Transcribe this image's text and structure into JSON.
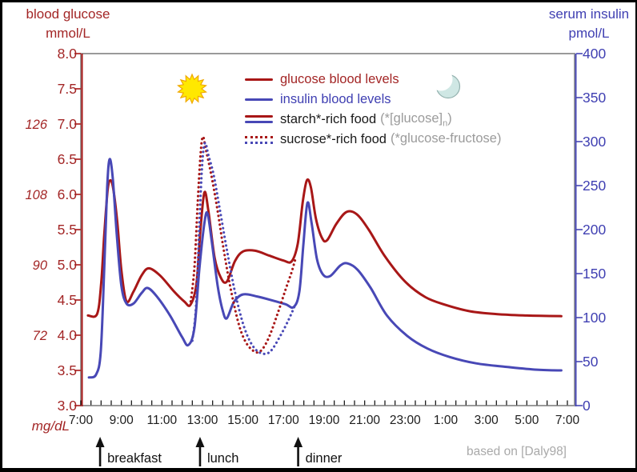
{
  "window": {
    "background": "#ffffff",
    "frame_color": "#000000"
  },
  "titles": {
    "left_axis": [
      "blood glucose",
      "mmol/L"
    ],
    "right_axis": [
      "serum insulin",
      "pmol/L"
    ],
    "credit": "based on [Daly98]"
  },
  "colors": {
    "glucose_line": "#a81717",
    "insulin_line": "#4848b6",
    "axis_red_text": "#a32626",
    "axis_blue_text": "#3f3fb2",
    "frame_gray": "#9a9a9a",
    "tick_black": "#1a1a1a",
    "time_label_black": "#1c1c1c",
    "meal_label_black": "#111111",
    "note_gray": "#9b9b9b",
    "credit_gray": "#a9a9a9",
    "sun_fill": "#ffe800",
    "sun_stroke": "#f0a800",
    "moon_fill": "#cfe7e4",
    "moon_stroke": "#93b1ae"
  },
  "icons": {
    "sun": "sun-icon",
    "moon": "moon-icon"
  },
  "legend": {
    "items": [
      {
        "label": "glucose blood levels",
        "swatch": "solid-red"
      },
      {
        "label": "insulin blood levels",
        "swatch": "solid-blue"
      },
      {
        "label": "starch*-rich food",
        "note_pre": "(*[glucose]",
        "note_sub": "n",
        "note_post": ")",
        "swatch": "double-solid"
      },
      {
        "label": "sucrose*-rich food",
        "note_pre": "(*glucose-fructose)",
        "note_sub": "",
        "note_post": "",
        "swatch": "double-dotted"
      }
    ]
  },
  "meals": [
    {
      "label": "breakfast",
      "hour": 7.95
    },
    {
      "label": "lunch",
      "hour": 12.88
    },
    {
      "label": "dinner",
      "hour": 17.72
    }
  ],
  "chart_data": {
    "type": "line",
    "title": "",
    "x_axis": {
      "unit": "time of day",
      "range_hours": [
        7,
        31.4
      ],
      "minor_tick_step_hours": 0.5,
      "labels": [
        {
          "text": "7:00",
          "hour": 7
        },
        {
          "text": "9:00",
          "hour": 9
        },
        {
          "text": "11:00",
          "hour": 11
        },
        {
          "text": "13:00",
          "hour": 13
        },
        {
          "text": "15:00",
          "hour": 15
        },
        {
          "text": "17:00",
          "hour": 17
        },
        {
          "text": "19:00",
          "hour": 19
        },
        {
          "text": "21:00",
          "hour": 21
        },
        {
          "text": "23:00",
          "hour": 23
        },
        {
          "text": "1:00",
          "hour": 25
        },
        {
          "text": "3:00",
          "hour": 27
        },
        {
          "text": "5:00",
          "hour": 29
        },
        {
          "text": "7:00",
          "hour": 31
        }
      ]
    },
    "y_left": {
      "label": "blood glucose mmol/L",
      "range": [
        3.0,
        8.0
      ],
      "ticks": [
        {
          "label": "8.0",
          "value": 8.0
        },
        {
          "label": "7.5",
          "value": 7.5
        },
        {
          "label": "7.0",
          "value": 7.0
        },
        {
          "label": "6.5",
          "value": 6.5
        },
        {
          "label": "6.0",
          "value": 6.0
        },
        {
          "label": "5.5",
          "value": 5.5
        },
        {
          "label": "5.0",
          "value": 5.0
        },
        {
          "label": "4.5",
          "value": 4.5
        },
        {
          "label": "4.0",
          "value": 4.0
        },
        {
          "label": "3.5",
          "value": 3.5
        },
        {
          "label": "3.0",
          "value": 3.0
        }
      ],
      "secondary_mgdl_labels": [
        {
          "text": "126",
          "value": 7.0
        },
        {
          "text": "108",
          "value": 6.0
        },
        {
          "text": "90",
          "value": 5.0
        },
        {
          "text": "72",
          "value": 4.0
        }
      ],
      "secondary_unit": "mg/dL"
    },
    "y_right": {
      "label": "serum insulin pmol/L",
      "range": [
        0,
        400
      ],
      "ticks": [
        {
          "label": "400",
          "value": 400
        },
        {
          "label": "350",
          "value": 350
        },
        {
          "label": "300",
          "value": 300
        },
        {
          "label": "250",
          "value": 250
        },
        {
          "label": "200",
          "value": 200
        },
        {
          "label": "150",
          "value": 150
        },
        {
          "label": "100",
          "value": 100
        },
        {
          "label": "50",
          "value": 50
        },
        {
          "label": "0",
          "value": 0
        }
      ]
    },
    "legend_entries": [
      "glucose blood levels",
      "insulin blood levels",
      "starch*-rich food (*[glucose]n)",
      "sucrose*-rich food (*glucose-fructose)"
    ],
    "annotations": [
      "breakfast",
      "lunch",
      "dinner",
      "based on [Daly98]"
    ],
    "series": [
      {
        "name": "glucose blood levels — starch-rich food",
        "style": "solid",
        "color_key": "glucose_line",
        "points": [
          [
            7.35,
            4.28
          ],
          [
            7.8,
            4.3
          ],
          [
            8.0,
            4.72
          ],
          [
            8.15,
            5.4
          ],
          [
            8.32,
            6.05
          ],
          [
            8.45,
            6.2
          ],
          [
            8.6,
            6.08
          ],
          [
            8.8,
            5.6
          ],
          [
            9.0,
            4.92
          ],
          [
            9.25,
            4.48
          ],
          [
            9.6,
            4.62
          ],
          [
            10.0,
            4.85
          ],
          [
            10.35,
            4.95
          ],
          [
            10.9,
            4.85
          ],
          [
            11.6,
            4.62
          ],
          [
            12.1,
            4.48
          ],
          [
            12.4,
            4.43
          ],
          [
            12.7,
            4.72
          ],
          [
            12.9,
            5.5
          ],
          [
            13.1,
            6.03
          ],
          [
            13.3,
            5.75
          ],
          [
            13.6,
            5.1
          ],
          [
            13.9,
            4.82
          ],
          [
            14.2,
            4.76
          ],
          [
            14.6,
            5.05
          ],
          [
            15.0,
            5.19
          ],
          [
            15.6,
            5.2
          ],
          [
            16.3,
            5.13
          ],
          [
            17.0,
            5.06
          ],
          [
            17.4,
            5.05
          ],
          [
            17.7,
            5.3
          ],
          [
            17.95,
            5.9
          ],
          [
            18.15,
            6.2
          ],
          [
            18.35,
            6.1
          ],
          [
            18.6,
            5.65
          ],
          [
            18.9,
            5.38
          ],
          [
            19.15,
            5.35
          ],
          [
            19.6,
            5.58
          ],
          [
            20.1,
            5.75
          ],
          [
            20.6,
            5.72
          ],
          [
            21.2,
            5.5
          ],
          [
            22.0,
            5.12
          ],
          [
            23.0,
            4.76
          ],
          [
            24.0,
            4.54
          ],
          [
            25.0,
            4.43
          ],
          [
            26.2,
            4.34
          ],
          [
            27.5,
            4.3
          ],
          [
            29.0,
            4.28
          ],
          [
            30.7,
            4.27
          ]
        ]
      },
      {
        "name": "insulin blood levels — starch-rich food",
        "style": "solid",
        "color_key": "insulin_line",
        "points": [
          [
            7.4,
            3.4
          ],
          [
            7.75,
            3.44
          ],
          [
            7.98,
            3.75
          ],
          [
            8.15,
            4.9
          ],
          [
            8.3,
            6.1
          ],
          [
            8.42,
            6.5
          ],
          [
            8.58,
            6.22
          ],
          [
            8.78,
            5.4
          ],
          [
            9.0,
            4.7
          ],
          [
            9.25,
            4.45
          ],
          [
            9.6,
            4.45
          ],
          [
            10.0,
            4.6
          ],
          [
            10.3,
            4.67
          ],
          [
            10.75,
            4.55
          ],
          [
            11.4,
            4.28
          ],
          [
            12.0,
            3.97
          ],
          [
            12.3,
            3.86
          ],
          [
            12.6,
            4.1
          ],
          [
            12.85,
            4.95
          ],
          [
            13.1,
            5.6
          ],
          [
            13.25,
            5.73
          ],
          [
            13.45,
            5.35
          ],
          [
            13.75,
            4.7
          ],
          [
            14.0,
            4.35
          ],
          [
            14.2,
            4.24
          ],
          [
            14.55,
            4.47
          ],
          [
            15.0,
            4.58
          ],
          [
            15.7,
            4.55
          ],
          [
            16.5,
            4.49
          ],
          [
            17.1,
            4.44
          ],
          [
            17.5,
            4.4
          ],
          [
            17.78,
            4.62
          ],
          [
            17.98,
            5.3
          ],
          [
            18.18,
            5.88
          ],
          [
            18.38,
            5.6
          ],
          [
            18.65,
            5.08
          ],
          [
            18.95,
            4.86
          ],
          [
            19.3,
            4.84
          ],
          [
            19.8,
            4.99
          ],
          [
            20.15,
            5.02
          ],
          [
            20.65,
            4.93
          ],
          [
            21.3,
            4.67
          ],
          [
            22.1,
            4.28
          ],
          [
            23.1,
            3.99
          ],
          [
            24.1,
            3.81
          ],
          [
            25.2,
            3.69
          ],
          [
            26.5,
            3.6
          ],
          [
            28.0,
            3.55
          ],
          [
            29.5,
            3.51
          ],
          [
            30.7,
            3.5
          ]
        ]
      },
      {
        "name": "glucose blood levels — sucrose-rich food",
        "style": "dotted",
        "color_key": "glucose_line",
        "points": [
          [
            12.42,
            4.48
          ],
          [
            12.6,
            4.95
          ],
          [
            12.76,
            5.85
          ],
          [
            12.9,
            6.55
          ],
          [
            13.02,
            6.82
          ],
          [
            13.18,
            6.62
          ],
          [
            13.42,
            6.3
          ],
          [
            13.7,
            5.85
          ],
          [
            14.0,
            5.3
          ],
          [
            14.35,
            4.72
          ],
          [
            14.75,
            4.2
          ],
          [
            15.1,
            3.92
          ],
          [
            15.5,
            3.78
          ],
          [
            15.85,
            3.77
          ],
          [
            16.25,
            3.95
          ],
          [
            16.7,
            4.3
          ],
          [
            17.1,
            4.65
          ],
          [
            17.4,
            4.9
          ],
          [
            17.6,
            5.1
          ]
        ]
      },
      {
        "name": "insulin blood levels — sucrose-rich food",
        "style": "dotted",
        "color_key": "insulin_line",
        "points": [
          [
            12.5,
            3.92
          ],
          [
            12.68,
            4.4
          ],
          [
            12.84,
            5.5
          ],
          [
            12.98,
            6.4
          ],
          [
            13.12,
            6.73
          ],
          [
            13.3,
            6.55
          ],
          [
            13.55,
            6.28
          ],
          [
            13.85,
            5.8
          ],
          [
            14.2,
            5.22
          ],
          [
            14.6,
            4.62
          ],
          [
            15.05,
            4.12
          ],
          [
            15.5,
            3.84
          ],
          [
            15.95,
            3.74
          ],
          [
            16.35,
            3.77
          ],
          [
            16.8,
            3.97
          ],
          [
            17.25,
            4.22
          ],
          [
            17.6,
            4.45
          ]
        ]
      }
    ]
  }
}
